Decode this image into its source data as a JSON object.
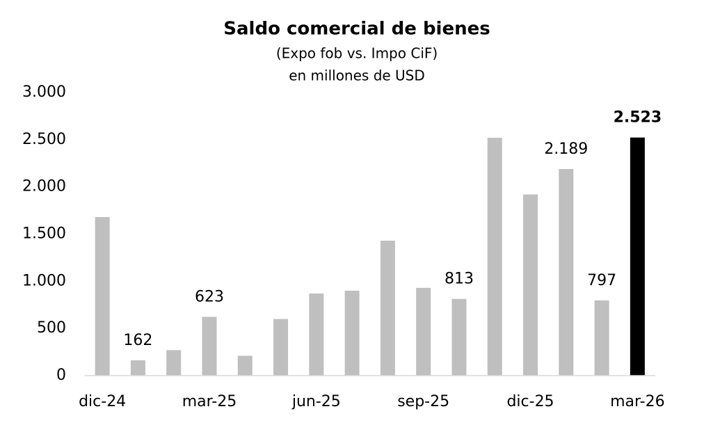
{
  "chart_data": {
    "type": "bar",
    "title": "Saldo comercial de bienes",
    "subtitle": [
      "(Expo fob vs. Impo CiF)",
      "en millones de USD"
    ],
    "categories": [
      "dic-24",
      null,
      null,
      "mar-25",
      null,
      null,
      "jun-25",
      null,
      null,
      "sep-25",
      null,
      null,
      "dic-25",
      null,
      null,
      "mar-26"
    ],
    "values": [
      1680,
      162,
      270,
      623,
      210,
      600,
      870,
      900,
      1430,
      930,
      813,
      2520,
      1920,
      2189,
      797,
      2523
    ],
    "value_labels": [
      null,
      "162",
      null,
      "623",
      null,
      null,
      null,
      null,
      null,
      null,
      "813",
      null,
      null,
      "2.189",
      "797",
      "2.523"
    ],
    "colors": [
      "#bfbfbf",
      "#bfbfbf",
      "#bfbfbf",
      "#bfbfbf",
      "#bfbfbf",
      "#bfbfbf",
      "#bfbfbf",
      "#bfbfbf",
      "#bfbfbf",
      "#bfbfbf",
      "#bfbfbf",
      "#bfbfbf",
      "#bfbfbf",
      "#bfbfbf",
      "#bfbfbf",
      "#000000"
    ],
    "ylim": [
      0,
      3000
    ],
    "yticks": [
      0,
      500,
      {
        "value": 1000,
        "label": "1.000"
      },
      {
        "value": 1500,
        "label": "1.500"
      },
      {
        "value": 2000,
        "label": "2.000"
      },
      {
        "value": 2500,
        "label": "2.500"
      },
      {
        "value": 3000,
        "label": "3.000"
      }
    ],
    "grid": false
  }
}
